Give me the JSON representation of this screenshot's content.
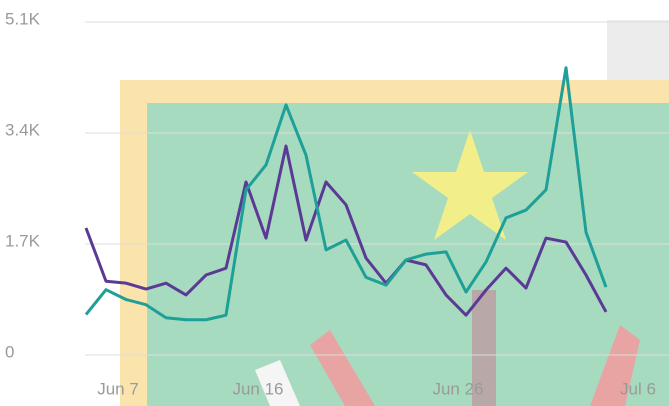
{
  "chart_data": {
    "type": "line",
    "categories": [
      null,
      null,
      "Jun 7",
      null,
      null,
      null,
      null,
      null,
      null,
      "Jun 16",
      null,
      null,
      null,
      null,
      null,
      null,
      null,
      null,
      null,
      "Jun 26",
      null,
      null,
      null,
      null,
      null,
      null,
      null,
      null,
      "Jul 6"
    ],
    "series": [
      {
        "color": "#5b3a96",
        "values": [
          1945,
          1130,
          1100,
          1010,
          1100,
          920,
          1225,
          1330,
          2650,
          1790,
          3200,
          1760,
          2650,
          2300,
          1485,
          1100,
          1455,
          1380,
          920,
          610,
          995,
          1330,
          1025,
          1790,
          1730,
          1225,
          660,
          null,
          null
        ]
      },
      {
        "color": "#1e9f97",
        "values": [
          620,
          1000,
          850,
          770,
          570,
          540,
          540,
          610,
          2530,
          2910,
          3830,
          3060,
          1610,
          1760,
          1190,
          1070,
          1455,
          1545,
          1580,
          965,
          1425,
          2100,
          2220,
          2530,
          4400,
          1880,
          1040,
          null,
          null
        ]
      }
    ],
    "ylim": [
      0,
      5100
    ],
    "yticks": [
      0,
      {
        "value": 1700,
        "label": "1.7K"
      },
      {
        "value": 3400,
        "label": "3.4K"
      },
      {
        "value": 5100,
        "label": "5.1K"
      }
    ],
    "grid": true
  }
}
